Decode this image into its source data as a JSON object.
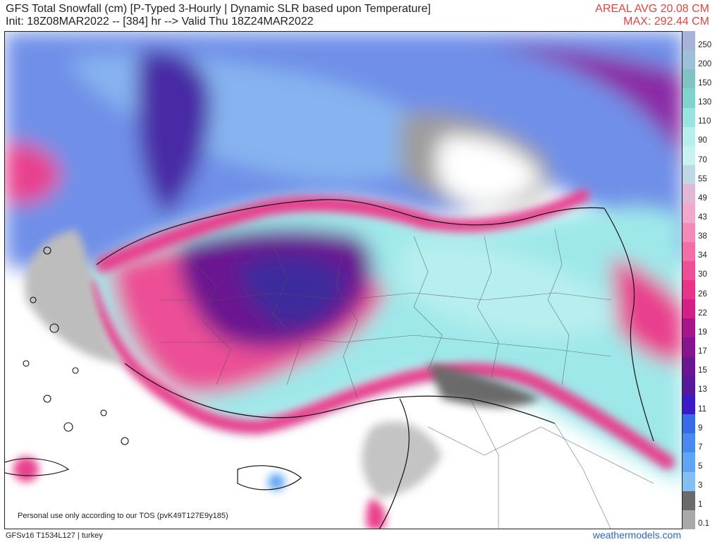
{
  "header": {
    "title_line1": "GFS Total Snowfall (cm) [P-Typed 3-Hourly | Dynamic SLR based upon Temperature]",
    "title_line2": "Init: 18Z08MAR2022 -- [384] hr --> Valid Thu 18Z24MAR2022",
    "areal_avg": "AREAL AVG 20.08 CM",
    "max": "MAX: 292.44 CM"
  },
  "map": {
    "tos_notice": "Personal use only according to our TOS (pvK49T127E9y185)"
  },
  "legend": {
    "labels": [
      "250",
      "200",
      "150",
      "130",
      "110",
      "90",
      "70",
      "55",
      "49",
      "43",
      "38",
      "34",
      "30",
      "26",
      "22",
      "19",
      "17",
      "15",
      "13",
      "11",
      "9",
      "7",
      "5",
      "3",
      "1",
      "0.1"
    ],
    "colors": [
      "#a6b4dc",
      "#9cc0d8",
      "#7fc3c3",
      "#80d3cf",
      "#99e3e3",
      "#b7eeee",
      "#c8f1f1",
      "#bfd8e6",
      "#e2b7d6",
      "#f0a8cc",
      "#f58ab8",
      "#f26ea7",
      "#ec4f96",
      "#e83388",
      "#d41f87",
      "#a6158a",
      "#84158f",
      "#6a1690",
      "#58189a",
      "#3c1ac8",
      "#3a6be6",
      "#4a8aef",
      "#5ea5f2",
      "#84bff4",
      "#6b6b6b",
      "#a9a9a9"
    ]
  },
  "footer": {
    "model": "GFSv16 T1534L127 | turkey",
    "site": "weathermodels.com"
  }
}
